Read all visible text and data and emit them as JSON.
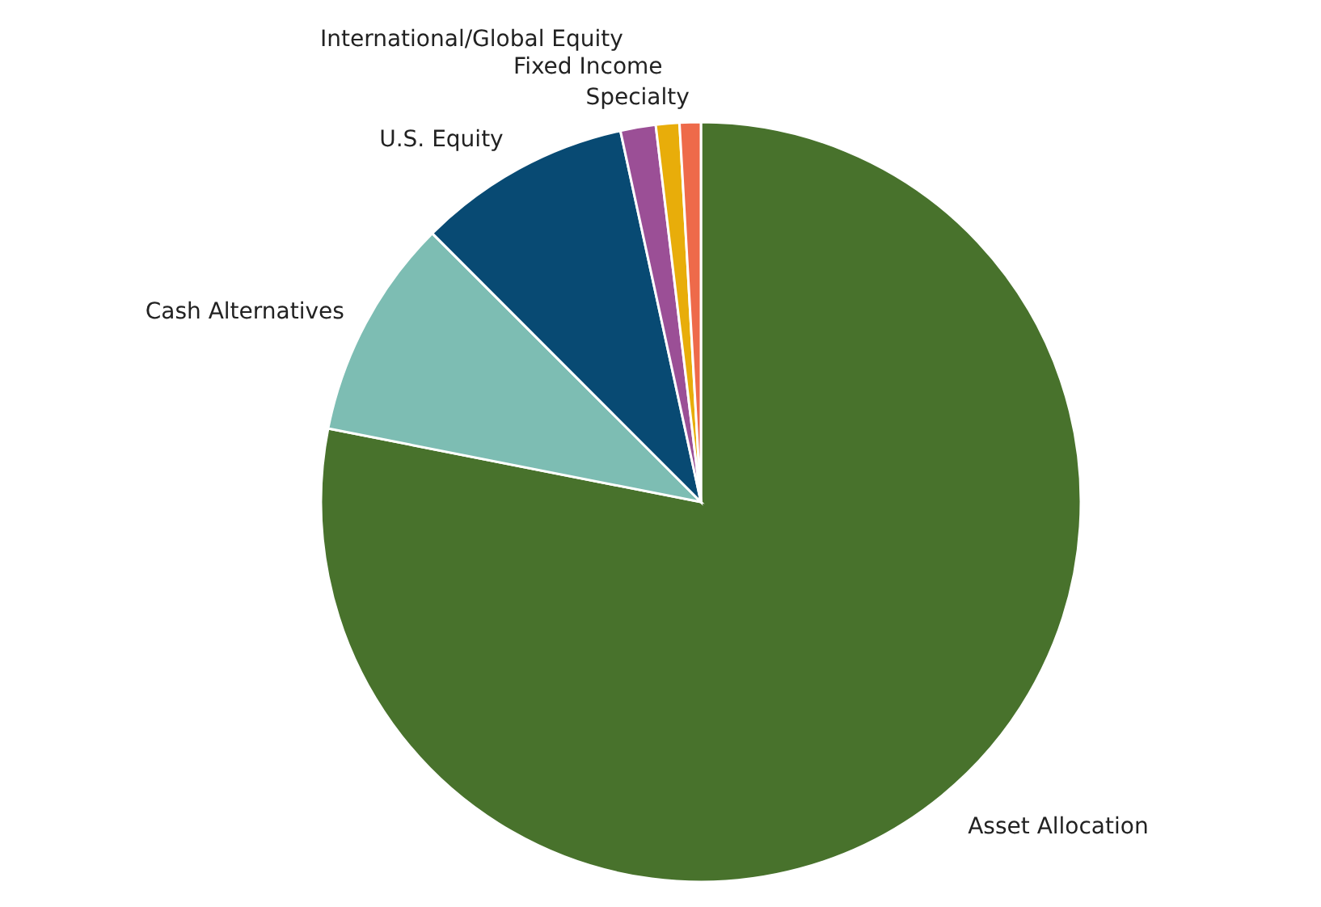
{
  "chart_data": {
    "type": "pie",
    "categories": [
      "Asset Allocation",
      "Cash Alternatives",
      "U.S. Equity",
      "International/Global Equity",
      "Fixed Income",
      "Specialty"
    ],
    "values": [
      78.1,
      9.4,
      9.1,
      1.5,
      1.0,
      0.9
    ],
    "colors": [
      "#48722c",
      "#7dbdb3",
      "#084a73",
      "#9b4f96",
      "#e8ad0a",
      "#ee6a4a"
    ]
  }
}
